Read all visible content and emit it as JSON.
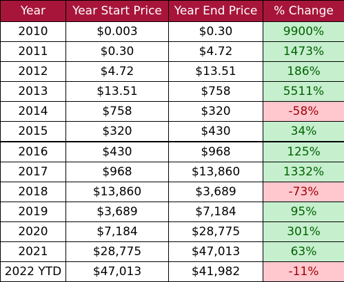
{
  "table": {
    "headers": [
      "Year",
      "Year Start Price",
      "Year End Price",
      "% Change"
    ],
    "rows": [
      {
        "year": "2010",
        "start": "$0.003",
        "end": "$0.30",
        "change": "9900%",
        "trend": "pos"
      },
      {
        "year": "2011",
        "start": "$0.30",
        "end": "$4.72",
        "change": "1473%",
        "trend": "pos"
      },
      {
        "year": "2012",
        "start": "$4.72",
        "end": "$13.51",
        "change": "186%",
        "trend": "pos"
      },
      {
        "year": "2013",
        "start": "$13.51",
        "end": "$758",
        "change": "5511%",
        "trend": "pos"
      },
      {
        "year": "2014",
        "start": "$758",
        "end": "$320",
        "change": "-58%",
        "trend": "neg"
      },
      {
        "year": "2015",
        "start": "$320",
        "end": "$430",
        "change": "34%",
        "trend": "pos"
      },
      {
        "year": "2016",
        "start": "$430",
        "end": "$968",
        "change": "125%",
        "trend": "pos"
      },
      {
        "year": "2017",
        "start": "$968",
        "end": "$13,860",
        "change": "1332%",
        "trend": "pos"
      },
      {
        "year": "2018",
        "start": "$13,860",
        "end": "$3,689",
        "change": "-73%",
        "trend": "neg"
      },
      {
        "year": "2019",
        "start": "$3,689",
        "end": "$7,184",
        "change": "95%",
        "trend": "pos"
      },
      {
        "year": "2020",
        "start": "$7,184",
        "end": "$28,775",
        "change": "301%",
        "trend": "pos"
      },
      {
        "year": "2021",
        "start": "$28,775",
        "end": "$47,013",
        "change": "63%",
        "trend": "pos"
      },
      {
        "year": "2022 YTD",
        "start": "$47,013",
        "end": "$41,982",
        "change": "-11%",
        "trend": "neg"
      }
    ]
  },
  "colors": {
    "header_bg": "#a8153a",
    "header_text": "#ffffff",
    "positive_bg": "#c6efce",
    "positive_text": "#006100",
    "negative_bg": "#ffc7ce",
    "negative_text": "#9c0006"
  }
}
